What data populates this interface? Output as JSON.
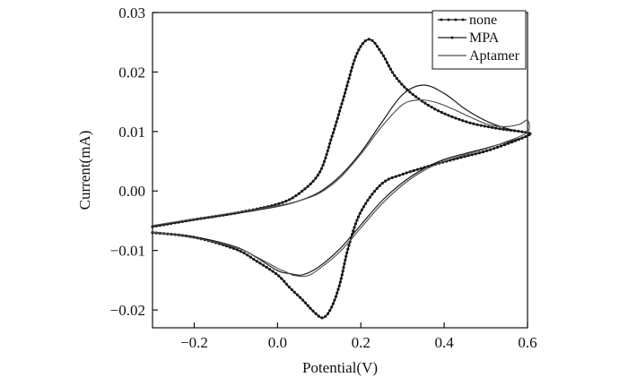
{
  "chart_data": {
    "type": "line",
    "title": "",
    "xlabel": "Potential(V)",
    "ylabel": "Current(mA)",
    "xlim": [
      -0.3,
      0.6
    ],
    "ylim": [
      -0.023,
      0.03
    ],
    "x_ticks": [
      -0.2,
      0.0,
      0.2,
      0.4,
      0.6
    ],
    "x_tick_labels": [
      "−0.2",
      "0.0",
      "0.2",
      "0.4",
      "0.6"
    ],
    "y_ticks": [
      -0.02,
      -0.01,
      0.0,
      0.01,
      0.02,
      0.03
    ],
    "y_tick_labels": [
      "−0.02",
      "−0.01",
      "0.00",
      "0.01",
      "0.02",
      "0.03"
    ],
    "grid": false,
    "legend_position": "top-right",
    "series": [
      {
        "name": "none",
        "marker": "dot",
        "color": "#1a1a1a",
        "x": [
          -0.3,
          -0.2,
          -0.1,
          0.0,
          0.05,
          0.1,
          0.13,
          0.16,
          0.19,
          0.22,
          0.25,
          0.28,
          0.32,
          0.38,
          0.45,
          0.52,
          0.6,
          0.6,
          0.55,
          0.5,
          0.45,
          0.4,
          0.35,
          0.3,
          0.25,
          0.2,
          0.17,
          0.15,
          0.13,
          0.11,
          0.09,
          0.06,
          0.03,
          0.0,
          -0.05,
          -0.1,
          -0.2,
          -0.3
        ],
        "y": [
          -0.006,
          -0.0048,
          -0.0037,
          -0.0022,
          -0.0005,
          0.003,
          0.009,
          0.016,
          0.023,
          0.0255,
          0.0232,
          0.0195,
          0.0165,
          0.0137,
          0.0117,
          0.0106,
          0.0098,
          0.0093,
          0.0079,
          0.0067,
          0.0058,
          0.0049,
          0.0039,
          0.0028,
          0.0012,
          -0.0035,
          -0.0095,
          -0.0155,
          -0.0195,
          -0.0213,
          -0.0205,
          -0.0183,
          -0.0163,
          -0.0141,
          -0.0118,
          -0.0098,
          -0.0078,
          -0.007
        ]
      },
      {
        "name": "MPA",
        "marker": "none",
        "color": "#1a1a1a",
        "x": [
          -0.3,
          -0.2,
          -0.1,
          0.0,
          0.05,
          0.1,
          0.15,
          0.2,
          0.25,
          0.3,
          0.35,
          0.4,
          0.45,
          0.5,
          0.55,
          0.6,
          0.6,
          0.55,
          0.5,
          0.45,
          0.4,
          0.35,
          0.3,
          0.25,
          0.2,
          0.15,
          0.1,
          0.06,
          0.03,
          0.0,
          -0.05,
          -0.1,
          -0.2,
          -0.3
        ],
        "y": [
          -0.006,
          -0.0049,
          -0.0038,
          -0.0026,
          -0.0017,
          -0.0002,
          0.0025,
          0.0065,
          0.0115,
          0.0162,
          0.0178,
          0.0164,
          0.0138,
          0.0118,
          0.0105,
          0.0097,
          0.0093,
          0.0082,
          0.0072,
          0.0063,
          0.0053,
          0.0037,
          0.0014,
          -0.0017,
          -0.0057,
          -0.0097,
          -0.0127,
          -0.0141,
          -0.0139,
          -0.0134,
          -0.0112,
          -0.0094,
          -0.0077,
          -0.0069
        ]
      },
      {
        "name": "Aptamer",
        "marker": "none",
        "color": "#555555",
        "x": [
          -0.3,
          -0.2,
          -0.1,
          0.0,
          0.05,
          0.1,
          0.15,
          0.2,
          0.25,
          0.3,
          0.34,
          0.38,
          0.42,
          0.46,
          0.5,
          0.54,
          0.58,
          0.6,
          0.6,
          0.55,
          0.5,
          0.45,
          0.4,
          0.35,
          0.3,
          0.25,
          0.2,
          0.15,
          0.1,
          0.07,
          0.04,
          0.02,
          0.0,
          -0.05,
          -0.1,
          -0.2,
          -0.3
        ],
        "y": [
          -0.0058,
          -0.0047,
          -0.0036,
          -0.0025,
          -0.0017,
          -0.0004,
          0.0022,
          0.0062,
          0.0108,
          0.0145,
          0.0153,
          0.0149,
          0.0138,
          0.0125,
          0.0113,
          0.0108,
          0.0112,
          0.0119,
          0.0099,
          0.0083,
          0.0071,
          0.0061,
          0.005,
          0.0034,
          0.001,
          -0.0022,
          -0.0062,
          -0.0102,
          -0.0131,
          -0.0143,
          -0.0142,
          -0.0136,
          -0.013,
          -0.0111,
          -0.0095,
          -0.0079,
          -0.0069
        ]
      }
    ]
  }
}
